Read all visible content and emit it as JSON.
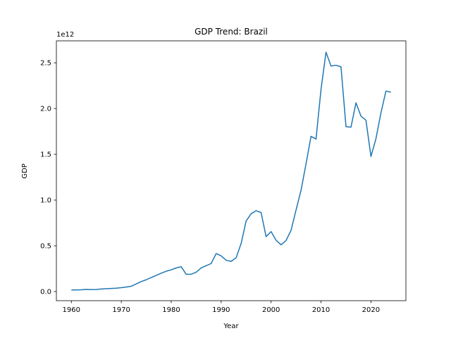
{
  "chart_data": {
    "type": "line",
    "title": "GDP Trend: Brazil",
    "xlabel": "Year",
    "ylabel": "GDP",
    "y_offset_label": "1e12",
    "xlim": [
      1957,
      2027
    ],
    "ylim": [
      -0.1,
      2.74
    ],
    "x_ticks": [
      1960,
      1970,
      1980,
      1990,
      2000,
      2010,
      2020
    ],
    "y_ticks": [
      0.0,
      0.5,
      1.0,
      1.5,
      2.0,
      2.5
    ],
    "y_tick_labels": [
      "0.0",
      "0.5",
      "1.0",
      "1.5",
      "2.0",
      "2.5"
    ],
    "grid": false,
    "line_color": "#1f77b4",
    "series": [
      {
        "x": [
          1960,
          1961,
          1962,
          1963,
          1964,
          1965,
          1966,
          1967,
          1968,
          1969,
          1970,
          1971,
          1972,
          1973,
          1974,
          1975,
          1976,
          1977,
          1978,
          1979,
          1980,
          1981,
          1982,
          1983,
          1984,
          1985,
          1986,
          1987,
          1988,
          1989,
          1990,
          1991,
          1992,
          1993,
          1994,
          1995,
          1996,
          1997,
          1998,
          1999,
          2000,
          2001,
          2002,
          2003,
          2004,
          2005,
          2006,
          2007,
          2008,
          2009,
          2010,
          2011,
          2012,
          2013,
          2014,
          2015,
          2016,
          2017,
          2018,
          2019,
          2020,
          2021,
          2022,
          2023,
          2024
        ],
        "values": [
          0.017,
          0.017,
          0.019,
          0.023,
          0.021,
          0.022,
          0.028,
          0.031,
          0.034,
          0.037,
          0.042,
          0.049,
          0.058,
          0.083,
          0.109,
          0.129,
          0.153,
          0.177,
          0.201,
          0.222,
          0.237,
          0.258,
          0.271,
          0.189,
          0.189,
          0.211,
          0.258,
          0.282,
          0.306,
          0.415,
          0.39,
          0.342,
          0.329,
          0.369,
          0.525,
          0.77,
          0.85,
          0.883,
          0.864,
          0.6,
          0.655,
          0.56,
          0.51,
          0.558,
          0.669,
          0.891,
          1.107,
          1.397,
          1.696,
          1.667,
          2.209,
          2.616,
          2.465,
          2.473,
          2.456,
          1.802,
          1.796,
          2.063,
          1.917,
          1.873,
          1.476,
          1.67,
          1.952,
          2.191,
          2.179
        ]
      }
    ]
  }
}
